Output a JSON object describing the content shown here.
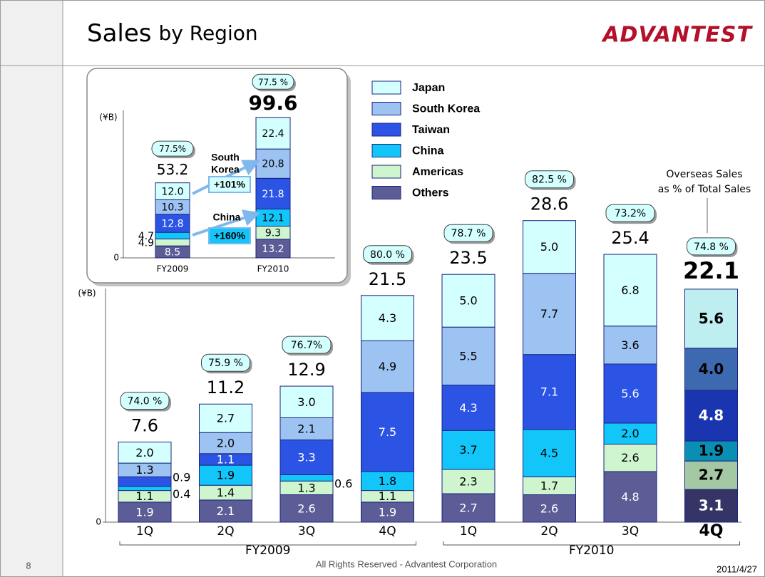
{
  "header": {
    "title_main": "Sales",
    "title_sub": "by Region",
    "logo": "ADVANTEST"
  },
  "footer": {
    "page": "8",
    "copyright": "All Rights Reserved - Advantest Corporation",
    "date": "2011/4/27"
  },
  "chart_data": [
    {
      "type": "stacked_bar",
      "y_label": "(¥B)",
      "ylim": [
        0,
        30
      ],
      "yticks": [
        0
      ],
      "categories": [
        "1Q",
        "2Q",
        "3Q",
        "4Q",
        "1Q",
        "2Q",
        "3Q",
        "4Q"
      ],
      "groups": [
        "FY2009",
        "FY2010"
      ],
      "highlight_index": 7,
      "legend": true,
      "series": [
        {
          "name": "Japan",
          "color": "#d4ffff",
          "highlight_color": "#bfeef0",
          "label_color": "#000",
          "values": [
            2.0,
            2.7,
            3.0,
            4.3,
            5.0,
            5.0,
            6.8,
            5.6
          ],
          "value_labels": [
            "2.0",
            "2.7",
            "3.0",
            "4.3",
            "5.0",
            "5.0",
            "6.8",
            "5.6"
          ]
        },
        {
          "name": "South Korea",
          "color": "#9dc3f2",
          "highlight_color": "#3d69b0",
          "label_color": "#000",
          "values": [
            1.3,
            2.0,
            2.1,
            4.9,
            5.5,
            7.7,
            3.6,
            4.0
          ],
          "value_labels": [
            "1.3",
            "2.0",
            "2.1",
            "4.9",
            "5.5",
            "7.7",
            "3.6",
            "4.0"
          ]
        },
        {
          "name": "Taiwan",
          "color": "#2c54e4",
          "highlight_color": "#1a35b0",
          "label_color": "#fff",
          "values": [
            0.9,
            1.1,
            3.3,
            7.5,
            4.3,
            7.1,
            5.6,
            4.8
          ],
          "value_labels": [
            "0.9",
            "1.1",
            "3.3",
            "7.5",
            "4.3",
            "7.1",
            "5.6",
            "4.8"
          ]
        },
        {
          "name": "China",
          "color": "#12c6fa",
          "highlight_color": "#0a8fb4",
          "label_color": "#000",
          "values": [
            0.4,
            1.9,
            0.6,
            1.8,
            3.7,
            4.5,
            2.0,
            1.9
          ],
          "value_labels": [
            "0.4",
            "1.9",
            "0.6",
            "1.8",
            "3.7",
            "4.5",
            "2.0",
            "1.9"
          ]
        },
        {
          "name": "Americas",
          "color": "#cff5cf",
          "highlight_color": "#a4c8a4",
          "label_color": "#000",
          "values": [
            1.1,
            1.4,
            1.3,
            1.1,
            2.3,
            1.7,
            2.6,
            2.7
          ],
          "value_labels": [
            "1.1",
            "1.4",
            "1.3",
            "1.1",
            "2.3",
            "1.7",
            "2.6",
            "2.7"
          ]
        },
        {
          "name": "Others",
          "color": "#5c5c96",
          "highlight_color": "#343466",
          "label_color": "#fff",
          "values": [
            1.9,
            2.1,
            2.6,
            1.9,
            2.7,
            2.6,
            4.8,
            3.1
          ],
          "value_labels": [
            "1.9",
            "2.1",
            "2.6",
            "1.9",
            "2.7",
            "2.6",
            "4.8",
            "3.1"
          ]
        }
      ],
      "totals": [
        7.6,
        11.2,
        12.9,
        21.5,
        23.5,
        28.6,
        25.4,
        22.1
      ],
      "overseas": {
        "values": [
          74.0,
          75.9,
          76.7,
          80.0,
          78.7,
          82.5,
          73.2,
          74.8
        ],
        "value_labels": [
          "74.0 %",
          "75.9 %",
          "76.7%",
          "80.0 %",
          "78.7 %",
          "82.5 %",
          "73.2%",
          "74.8 %"
        ]
      },
      "annotation": [
        "Overseas Sales",
        "as % of Total Sales"
      ]
    },
    {
      "type": "stacked_bar",
      "y_label": "(¥B)",
      "ylim": [
        0,
        100
      ],
      "yticks": [
        0
      ],
      "categories": [
        "FY2009",
        "FY2010"
      ],
      "series": [
        {
          "name": "Japan",
          "color": "#d4ffff",
          "label_color": "#000",
          "values": [
            12.0,
            22.4
          ],
          "value_labels": [
            "12.0",
            "22.4"
          ]
        },
        {
          "name": "South Korea",
          "color": "#9dc3f2",
          "label_color": "#000",
          "values": [
            10.3,
            20.8
          ],
          "value_labels": [
            "10.3",
            "20.8"
          ]
        },
        {
          "name": "Taiwan",
          "color": "#2c54e4",
          "label_color": "#fff",
          "values": [
            12.8,
            21.8
          ],
          "value_labels": [
            "12.8",
            "21.8"
          ]
        },
        {
          "name": "China",
          "color": "#12c6fa",
          "label_color": "#000",
          "values": [
            4.7,
            12.1
          ],
          "value_labels": [
            "4.7",
            "12.1"
          ]
        },
        {
          "name": "Americas",
          "color": "#cff5cf",
          "label_color": "#000",
          "values": [
            4.9,
            9.3
          ],
          "value_labels": [
            "4.9",
            "9.3"
          ]
        },
        {
          "name": "Others",
          "color": "#5c5c96",
          "label_color": "#fff",
          "values": [
            8.5,
            13.2
          ],
          "value_labels": [
            "8.5",
            "13.2"
          ]
        }
      ],
      "totals": [
        53.2,
        99.6
      ],
      "overseas": {
        "values": [
          77.5,
          77.5
        ],
        "value_labels": [
          "77.5%",
          "77.5 %"
        ]
      },
      "annotations": {
        "korea": [
          "South",
          "Korea"
        ],
        "korea_growth": "+101%",
        "china": "China",
        "china_growth": "+160%"
      }
    }
  ]
}
